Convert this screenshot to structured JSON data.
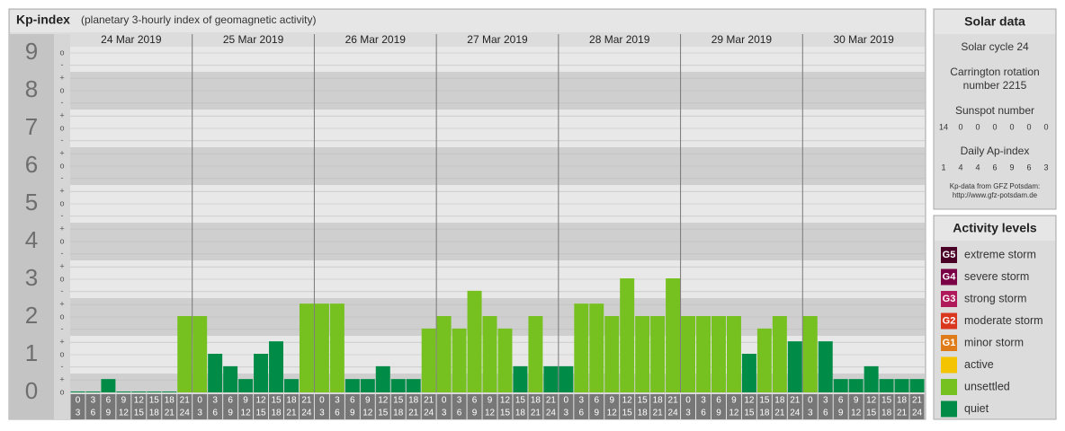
{
  "chart_data": {
    "type": "bar",
    "title": "Kp-index",
    "subtitle": "(planetary 3-hourly index of geomagnetic activity)",
    "days": [
      "24 Mar 2019",
      "25 Mar 2019",
      "26 Mar 2019",
      "27 Mar 2019",
      "28 Mar 2019",
      "29 Mar 2019",
      "30 Mar 2019"
    ],
    "hours": [
      [
        "0",
        "3"
      ],
      [
        "3",
        "6"
      ],
      [
        "6",
        "9"
      ],
      [
        "9",
        "12"
      ],
      [
        "12",
        "15"
      ],
      [
        "15",
        "18"
      ],
      [
        "18",
        "21"
      ],
      [
        "21",
        "24"
      ]
    ],
    "values": [
      0,
      0,
      0.33,
      0,
      0,
      0,
      0,
      2,
      2,
      1,
      0.67,
      0.33,
      1,
      1.33,
      0.33,
      2.33,
      2.33,
      2.33,
      0.33,
      0.33,
      0.67,
      0.33,
      0.33,
      1.67,
      2,
      1.67,
      2.67,
      2,
      1.67,
      0.67,
      2,
      0.67,
      0.67,
      2.33,
      2.33,
      2,
      3,
      2,
      2,
      3,
      2,
      2,
      2,
      2,
      1,
      1.67,
      2,
      1.33,
      2,
      1.33,
      0.33,
      0.33,
      0.67,
      0.33,
      0.33,
      0.33
    ],
    "colors": [
      "#008c46",
      "#008c46",
      "#008c46",
      "#008c46",
      "#008c46",
      "#008c46",
      "#008c46",
      "#76c11f",
      "#76c11f",
      "#008c46",
      "#008c46",
      "#008c46",
      "#008c46",
      "#008c46",
      "#008c46",
      "#76c11f",
      "#76c11f",
      "#76c11f",
      "#008c46",
      "#008c46",
      "#008c46",
      "#008c46",
      "#008c46",
      "#76c11f",
      "#76c11f",
      "#76c11f",
      "#76c11f",
      "#76c11f",
      "#76c11f",
      "#008c46",
      "#76c11f",
      "#008c46",
      "#008c46",
      "#76c11f",
      "#76c11f",
      "#76c11f",
      "#76c11f",
      "#76c11f",
      "#76c11f",
      "#76c11f",
      "#76c11f",
      "#76c11f",
      "#76c11f",
      "#76c11f",
      "#008c46",
      "#76c11f",
      "#76c11f",
      "#008c46",
      "#76c11f",
      "#008c46",
      "#008c46",
      "#008c46",
      "#008c46",
      "#008c46",
      "#008c46",
      "#008c46"
    ],
    "ylim": [
      0,
      9.5
    ],
    "major_yticks": [
      0,
      1,
      2,
      3,
      4,
      5,
      6,
      7,
      8,
      9
    ],
    "yticks": [
      {
        "value": 0,
        "label": "o"
      },
      {
        "value": 0.33,
        "label": "+"
      },
      {
        "value": 0.67,
        "label": "-"
      },
      {
        "value": 1,
        "label": "o"
      },
      {
        "value": 1.33,
        "label": "+"
      },
      {
        "value": 1.67,
        "label": "-"
      },
      {
        "value": 2,
        "label": "o"
      },
      {
        "value": 2.33,
        "label": "+"
      },
      {
        "value": 2.67,
        "label": "-"
      },
      {
        "value": 3,
        "label": "o"
      },
      {
        "value": 3.33,
        "label": "+"
      },
      {
        "value": 3.67,
        "label": "-"
      },
      {
        "value": 4,
        "label": "o"
      },
      {
        "value": 4.33,
        "label": "+"
      },
      {
        "value": 4.67,
        "label": "-"
      },
      {
        "value": 5,
        "label": "o"
      },
      {
        "value": 5.33,
        "label": "+"
      },
      {
        "value": 5.67,
        "label": "-"
      },
      {
        "value": 6,
        "label": "o"
      },
      {
        "value": 6.33,
        "label": "+"
      },
      {
        "value": 6.67,
        "label": "-"
      },
      {
        "value": 7,
        "label": "o"
      },
      {
        "value": 7.33,
        "label": "+"
      },
      {
        "value": 7.67,
        "label": "-"
      },
      {
        "value": 8,
        "label": "o"
      },
      {
        "value": 8.33,
        "label": "+"
      },
      {
        "value": 8.67,
        "label": "-"
      },
      {
        "value": 9,
        "label": "o"
      }
    ]
  },
  "solar": {
    "title": "Solar data",
    "cycle": "Solar cycle 24",
    "carrington": [
      "Carrington rotation",
      "number 2215"
    ],
    "sunspot_label": "Sunspot number",
    "sunspot": [
      "14",
      "0",
      "0",
      "0",
      "0",
      "0",
      "0"
    ],
    "ap_label": "Daily Ap-index",
    "ap": [
      "1",
      "4",
      "4",
      "6",
      "9",
      "6",
      "3"
    ],
    "source": [
      "Kp-data from GFZ Potsdam:",
      "http://www.gfz-potsdam.de"
    ]
  },
  "legend": {
    "title": "Activity levels",
    "items": [
      {
        "code": "G5",
        "label": "extreme storm",
        "color": "#4a0026"
      },
      {
        "code": "G4",
        "label": "severe storm",
        "color": "#7a0045"
      },
      {
        "code": "G3",
        "label": "strong storm",
        "color": "#b0195a"
      },
      {
        "code": "G2",
        "label": "moderate storm",
        "color": "#d9381e"
      },
      {
        "code": "G1",
        "label": "minor storm",
        "color": "#e07b1a"
      },
      {
        "code": "",
        "label": "active",
        "color": "#f5c400"
      },
      {
        "code": "",
        "label": "unsettled",
        "color": "#76c11f"
      },
      {
        "code": "",
        "label": "quiet",
        "color": "#008c46"
      }
    ]
  }
}
